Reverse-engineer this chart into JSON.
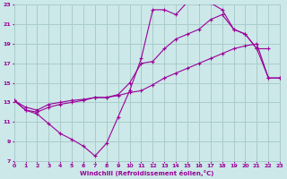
{
  "xlabel": "Windchill (Refroidissement éolien,°C)",
  "bg_color": "#cce8e8",
  "grid_color": "#aacccc",
  "line_color": "#990099",
  "marker_color": "#990099",
  "xlim": [
    0,
    23
  ],
  "ylim": [
    7,
    23
  ],
  "xticks": [
    0,
    1,
    2,
    3,
    4,
    5,
    6,
    7,
    8,
    9,
    10,
    11,
    12,
    13,
    14,
    15,
    16,
    17,
    18,
    19,
    20,
    21,
    22,
    23
  ],
  "yticks": [
    7,
    9,
    11,
    13,
    15,
    17,
    19,
    21,
    23
  ],
  "series1_x": [
    0,
    1,
    2,
    3,
    4,
    5,
    6,
    7,
    8,
    9,
    10,
    11,
    12,
    13,
    14,
    15,
    16,
    17,
    18,
    19,
    20,
    21,
    22
  ],
  "series1_y": [
    13.2,
    12.2,
    11.8,
    10.8,
    9.8,
    9.2,
    8.5,
    7.5,
    8.8,
    11.5,
    14.2,
    17.5,
    22.5,
    22.5,
    22.0,
    23.3,
    23.2,
    23.2,
    22.5,
    20.5,
    20.0,
    18.5,
    18.5
  ],
  "series2_x": [
    0,
    1,
    2,
    3,
    4,
    5,
    6,
    7,
    8,
    9,
    10,
    11,
    12,
    13,
    14,
    15,
    16,
    17,
    18,
    19,
    20,
    21,
    22,
    23
  ],
  "series2_y": [
    13.2,
    12.5,
    12.2,
    12.8,
    13.0,
    13.2,
    13.3,
    13.5,
    13.5,
    13.7,
    14.0,
    14.2,
    14.8,
    15.5,
    16.0,
    16.5,
    17.0,
    17.5,
    18.0,
    18.5,
    18.8,
    19.0,
    15.5,
    15.5
  ],
  "series3_x": [
    0,
    1,
    2,
    3,
    4,
    5,
    6,
    7,
    8,
    9,
    10,
    11,
    12,
    13,
    14,
    15,
    16,
    17,
    18,
    19,
    20,
    21,
    22,
    23
  ],
  "series3_y": [
    13.2,
    12.2,
    12.0,
    12.5,
    12.8,
    13.0,
    13.2,
    13.5,
    13.5,
    13.8,
    15.0,
    17.0,
    17.2,
    18.5,
    19.5,
    20.0,
    20.5,
    21.5,
    22.0,
    20.5,
    20.0,
    18.5,
    15.5,
    15.5
  ]
}
